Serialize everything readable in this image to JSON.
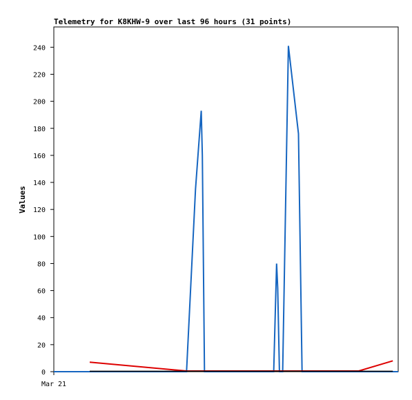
{
  "chart_data": {
    "type": "line",
    "title": "Telemetry for K8KHW-9 over last 96 hours (31 points)",
    "xlabel": "",
    "ylabel": "Values",
    "ylim": [
      0,
      255
    ],
    "yticks": [
      0,
      20,
      40,
      60,
      80,
      100,
      120,
      140,
      160,
      180,
      200,
      220,
      240
    ],
    "xlim": [
      0,
      96
    ],
    "xticks": [
      {
        "label": "Mar 21",
        "x": 0
      }
    ],
    "grid": false,
    "series": [
      {
        "color": "#1565c0",
        "x": [
          0,
          10,
          20,
          32,
          37,
          39.5,
          41.1,
          41.4,
          42,
          50,
          60,
          61.3,
          62.1,
          62.4,
          62.9,
          63.8,
          65.4,
          68.2,
          69.2,
          80,
          96
        ],
        "y": [
          0,
          0,
          0,
          0,
          0,
          135,
          193,
          160,
          0,
          0,
          0,
          0,
          80,
          62,
          0,
          0,
          241,
          176,
          0,
          0,
          0
        ]
      },
      {
        "color": "#dd0000",
        "x": [
          10,
          37,
          60,
          85,
          94.5
        ],
        "y": [
          7,
          0.5,
          0.5,
          0.5,
          8
        ]
      },
      {
        "color": "#000000",
        "x": [
          10,
          94.5
        ],
        "y": [
          0.3,
          0.3
        ]
      }
    ]
  }
}
